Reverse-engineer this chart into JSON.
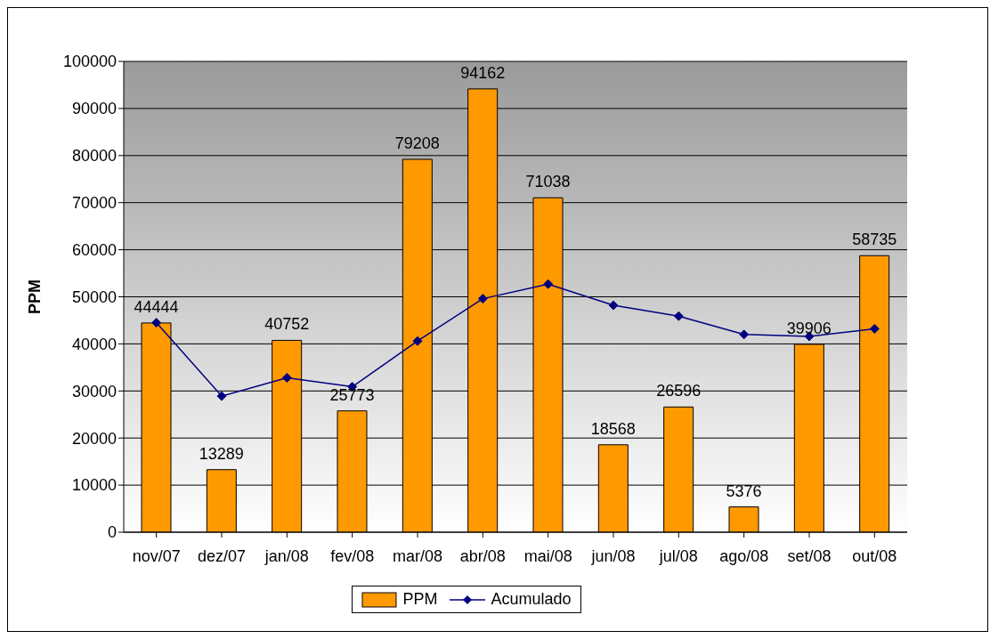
{
  "chart_data": {
    "type": "bar",
    "ylabel": "PPM",
    "categories": [
      "nov/07",
      "dez/07",
      "jan/08",
      "fev/08",
      "mar/08",
      "abr/08",
      "mai/08",
      "jun/08",
      "jul/08",
      "ago/08",
      "set/08",
      "out/08"
    ],
    "series": [
      {
        "name": "PPM",
        "color": "#ff9900",
        "values": [
          44444,
          13289,
          40752,
          25773,
          79208,
          94162,
          71038,
          18568,
          26596,
          5376,
          39906,
          58735
        ],
        "value_labels": [
          "44444",
          "13289",
          "40752",
          "25773",
          "79208",
          "94162",
          "71038",
          "18568",
          "26596",
          "5376",
          "39906",
          "58735"
        ]
      },
      {
        "name": "Acumulado",
        "type": "line",
        "color": "#000080",
        "values": [
          44500,
          28900,
          32800,
          30900,
          40600,
          49600,
          52700,
          48200,
          45900,
          42000,
          41600,
          43200
        ]
      }
    ],
    "ylim": [
      0,
      100000
    ],
    "yticks": [
      0,
      10000,
      20000,
      30000,
      40000,
      50000,
      60000,
      70000,
      80000,
      90000,
      100000
    ],
    "grid": "y",
    "legend": "bottom",
    "marker": "diamond"
  }
}
